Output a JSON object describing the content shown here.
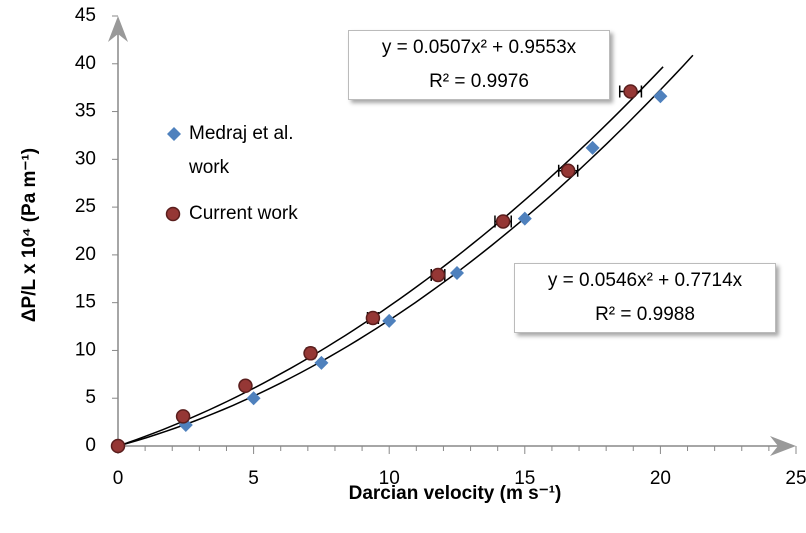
{
  "chart_data": {
    "type": "scatter",
    "xlabel": "Darcian velocity (m s⁻¹)",
    "ylabel": "ΔP/L x 10⁴ (Pa m⁻¹)",
    "xlim": [
      0,
      25
    ],
    "ylim": [
      0,
      45
    ],
    "xticks": [
      0,
      5,
      10,
      15,
      20,
      25
    ],
    "yticks": [
      0,
      5,
      10,
      15,
      20,
      25,
      30,
      35,
      40,
      45
    ],
    "series": [
      {
        "name": "Medraj et al. work",
        "color": "#4f81bd",
        "marker": "diamond",
        "x": [
          0,
          2.5,
          5,
          7.5,
          10,
          12.5,
          15,
          17.5,
          20
        ],
        "values": [
          0,
          2.2,
          5,
          8.7,
          13.1,
          18.1,
          23.8,
          31.2,
          36.6
        ],
        "trendline": {
          "coefficients": [
            0.0546,
            0.7714
          ],
          "equation": "y = 0.0546x² + 0.7714x",
          "r_squared": 0.9988,
          "r_squared_label": "R² = 0.9988"
        }
      },
      {
        "name": "Current work",
        "color": "#953735",
        "marker": "circle",
        "x": [
          0,
          2.4,
          4.7,
          7.1,
          9.4,
          11.8,
          14.2,
          16.6,
          18.9
        ],
        "values": [
          0,
          3.1,
          6.3,
          9.7,
          13.4,
          17.9,
          23.5,
          28.8,
          37.1
        ],
        "x_errors": [
          0.1,
          0.1,
          0.1,
          0.15,
          0.2,
          0.25,
          0.3,
          0.35,
          0.4
        ],
        "trendline": {
          "coefficients": [
            0.0507,
            0.9553
          ],
          "equation": "y = 0.0507x² + 0.9553x",
          "r_squared": 0.9976,
          "r_squared_label": "R² = 0.9976"
        }
      }
    ]
  }
}
